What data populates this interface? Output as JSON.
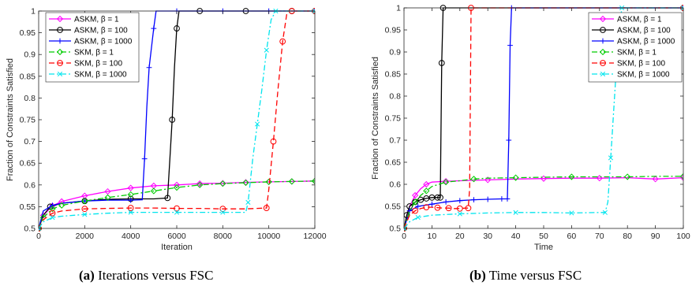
{
  "colors": {
    "ASKM_b1": "#ff00ff",
    "ASKM_b100": "#000000",
    "ASKM_b1000": "#0000ff",
    "SKM_b1": "#00cc00",
    "SKM_b100": "#ff0000",
    "SKM_b1000": "#00e5ee"
  },
  "captions": [
    {
      "tag": "(a)",
      "text": "Iterations versus FSC"
    },
    {
      "tag": "(b)",
      "text": "Time versus FSC"
    }
  ],
  "chart_data": [
    {
      "type": "line",
      "xlabel": "Iteration",
      "ylabel": "Fraction of Constraints Satisfied",
      "xlim": [
        0,
        12000
      ],
      "ylim": [
        0.5,
        1
      ],
      "xticks": [
        0,
        2000,
        4000,
        6000,
        8000,
        10000,
        12000
      ],
      "yticks": [
        0.5,
        0.55,
        0.6,
        0.65,
        0.7,
        0.75,
        0.8,
        0.85,
        0.9,
        0.95,
        1
      ],
      "ytick_labels": [
        "0.5",
        "0.55",
        "0.6",
        "0.65",
        "0.7",
        "0.75",
        "0.8",
        "0.85",
        "0.9",
        "0.95",
        "1"
      ],
      "legend_position": "top-left",
      "series": [
        {
          "name": "ASKM, β = 1",
          "style": "solid",
          "marker": "diamond",
          "x": [
            0,
            200,
            600,
            1000,
            2000,
            3000,
            4000,
            5000,
            6000,
            7000,
            8000,
            9000,
            10000,
            11000,
            12000
          ],
          "y": [
            0.5,
            0.53,
            0.552,
            0.562,
            0.575,
            0.585,
            0.593,
            0.598,
            0.6,
            0.603,
            0.604,
            0.606,
            0.607,
            0.608,
            0.609
          ]
        },
        {
          "name": "ASKM, β = 100",
          "style": "solid",
          "marker": "circle",
          "x": [
            0,
            200,
            500,
            1000,
            2000,
            3000,
            4000,
            5000,
            5600,
            5700,
            5800,
            5900,
            6000,
            6100,
            7000,
            8000,
            9000,
            10000,
            11000,
            12000
          ],
          "y": [
            0.5,
            0.53,
            0.55,
            0.558,
            0.563,
            0.567,
            0.568,
            0.568,
            0.57,
            0.66,
            0.75,
            0.87,
            0.96,
            1,
            1,
            1,
            1,
            1,
            1,
            1
          ]
        },
        {
          "name": "ASKM, β = 1000",
          "style": "solid",
          "marker": "plus",
          "x": [
            0,
            200,
            600,
            1000,
            2000,
            3000,
            4000,
            4500,
            4600,
            4700,
            4800,
            4900,
            5000,
            5100,
            6000,
            7000,
            8000,
            9000,
            10000,
            11000,
            12000
          ],
          "y": [
            0.5,
            0.54,
            0.553,
            0.558,
            0.563,
            0.565,
            0.565,
            0.566,
            0.66,
            0.78,
            0.87,
            0.915,
            0.96,
            1,
            1,
            1,
            1,
            1,
            1,
            1,
            1
          ]
        },
        {
          "name": "SKM, β = 1",
          "style": "dashdot",
          "marker": "diamond",
          "x": [
            0,
            200,
            600,
            1000,
            2000,
            3000,
            4000,
            5000,
            6000,
            7000,
            8000,
            9000,
            10000,
            11000,
            12000
          ],
          "y": [
            0.5,
            0.525,
            0.545,
            0.553,
            0.563,
            0.571,
            0.578,
            0.586,
            0.594,
            0.6,
            0.603,
            0.605,
            0.607,
            0.608,
            0.609
          ]
        },
        {
          "name": "SKM, β = 100",
          "style": "dashed",
          "marker": "circle",
          "x": [
            0,
            200,
            600,
            1000,
            2000,
            3000,
            4000,
            5000,
            6000,
            7000,
            8000,
            9000,
            9900,
            10000,
            10200,
            10400,
            10600,
            10800,
            11000,
            12000
          ],
          "y": [
            0.5,
            0.52,
            0.535,
            0.54,
            0.545,
            0.546,
            0.547,
            0.547,
            0.546,
            0.546,
            0.545,
            0.545,
            0.547,
            0.59,
            0.7,
            0.82,
            0.93,
            1,
            1,
            1
          ]
        },
        {
          "name": "SKM, β = 1000",
          "style": "dashdot",
          "marker": "x",
          "x": [
            0,
            200,
            600,
            1000,
            2000,
            3000,
            4000,
            5000,
            6000,
            7000,
            8000,
            9000,
            9100,
            9300,
            9500,
            9700,
            9900,
            10100,
            10300,
            10500,
            12000
          ],
          "y": [
            0.5,
            0.515,
            0.525,
            0.528,
            0.532,
            0.535,
            0.537,
            0.537,
            0.537,
            0.537,
            0.537,
            0.537,
            0.56,
            0.66,
            0.74,
            0.82,
            0.91,
            0.98,
            1,
            1,
            1
          ]
        }
      ]
    },
    {
      "type": "line",
      "xlabel": "Time",
      "ylabel": "Fraction of Constraints Satisfied",
      "xlim": [
        0,
        100
      ],
      "ylim": [
        0.5,
        1
      ],
      "xticks": [
        0,
        10,
        20,
        30,
        40,
        50,
        60,
        70,
        80,
        90,
        100
      ],
      "yticks": [
        0.5,
        0.55,
        0.6,
        0.65,
        0.7,
        0.75,
        0.8,
        0.85,
        0.9,
        0.95,
        1
      ],
      "ytick_labels": [
        "0.5",
        "0.55",
        "0.6",
        "0.65",
        "0.7",
        "0.75",
        "0.8",
        "0.85",
        "0.9",
        "0.95",
        "1"
      ],
      "legend_position": "top-right",
      "series": [
        {
          "name": "ASKM, β = 1",
          "style": "solid",
          "marker": "diamond",
          "x": [
            0,
            2,
            4,
            6,
            8,
            10,
            15,
            20,
            30,
            40,
            50,
            60,
            70,
            80,
            90,
            100
          ],
          "y": [
            0.5,
            0.55,
            0.575,
            0.59,
            0.6,
            0.605,
            0.607,
            0.608,
            0.61,
            0.612,
            0.613,
            0.614,
            0.614,
            0.615,
            0.612,
            0.615
          ]
        },
        {
          "name": "ASKM, β = 100",
          "style": "solid",
          "marker": "circle",
          "x": [
            0,
            1,
            2,
            4,
            6,
            8,
            10,
            12,
            13,
            13.5,
            14,
            100
          ],
          "y": [
            0.5,
            0.53,
            0.55,
            0.56,
            0.565,
            0.568,
            0.57,
            0.57,
            0.57,
            0.875,
            1,
            1
          ]
        },
        {
          "name": "ASKM, β = 1000",
          "style": "solid",
          "marker": "plus",
          "x": [
            0,
            2,
            5,
            10,
            15,
            20,
            25,
            30,
            35,
            37,
            37.5,
            38,
            38.5,
            100
          ],
          "y": [
            0.5,
            0.54,
            0.55,
            0.555,
            0.56,
            0.563,
            0.565,
            0.566,
            0.567,
            0.567,
            0.7,
            0.915,
            1,
            1
          ]
        },
        {
          "name": "SKM, β = 1",
          "style": "dashdot",
          "marker": "diamond",
          "x": [
            0,
            2,
            4,
            6,
            8,
            10,
            15,
            20,
            25,
            30,
            40,
            50,
            60,
            70,
            80,
            90,
            100
          ],
          "y": [
            0.5,
            0.54,
            0.56,
            0.575,
            0.585,
            0.595,
            0.605,
            0.608,
            0.612,
            0.614,
            0.615,
            0.616,
            0.617,
            0.617,
            0.617,
            0.618,
            0.618
          ]
        },
        {
          "name": "SKM, β = 100",
          "style": "dashed",
          "marker": "circle",
          "x": [
            0,
            2,
            4,
            6,
            8,
            10,
            12,
            14,
            16,
            18,
            20,
            22,
            23,
            23.5,
            24,
            100
          ],
          "y": [
            0.5,
            0.53,
            0.54,
            0.545,
            0.548,
            0.548,
            0.547,
            0.546,
            0.546,
            0.545,
            0.545,
            0.546,
            0.546,
            0.59,
            1,
            1
          ]
        },
        {
          "name": "SKM, β = 1000",
          "style": "dashdot",
          "marker": "x",
          "x": [
            0,
            2,
            5,
            10,
            20,
            30,
            40,
            50,
            60,
            70,
            72,
            73,
            74,
            75,
            76,
            77,
            78,
            100
          ],
          "y": [
            0.5,
            0.515,
            0.525,
            0.53,
            0.533,
            0.535,
            0.536,
            0.536,
            0.535,
            0.536,
            0.536,
            0.56,
            0.66,
            0.76,
            0.86,
            0.95,
            1,
            1
          ]
        }
      ]
    }
  ]
}
